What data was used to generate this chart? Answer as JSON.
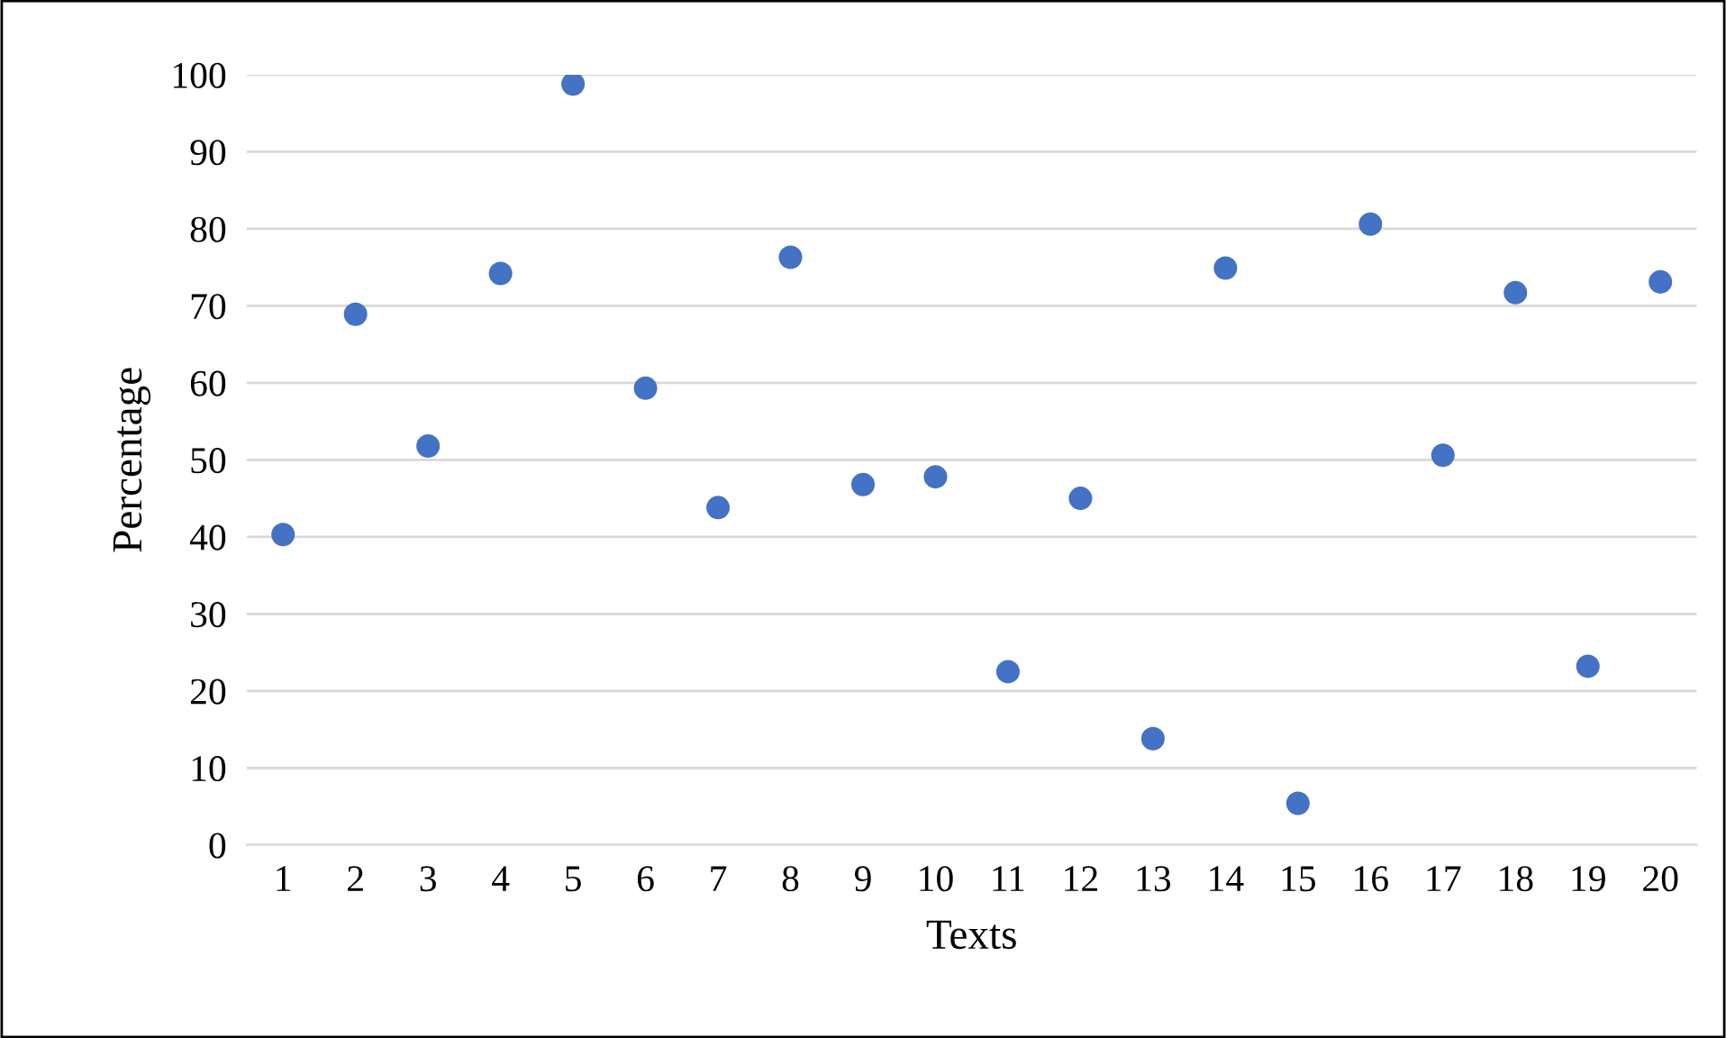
{
  "chart_data": {
    "type": "scatter",
    "xlabel": "Texts",
    "ylabel": "Percentage",
    "categories": [
      "1",
      "2",
      "3",
      "4",
      "5",
      "6",
      "7",
      "8",
      "9",
      "10",
      "11",
      "12",
      "13",
      "14",
      "15",
      "16",
      "17",
      "18",
      "19",
      "20"
    ],
    "series": [
      {
        "color": "#4472c4",
        "values": [
          40.3,
          68.9,
          51.8,
          74.2,
          98.8,
          59.3,
          43.8,
          76.3,
          46.8,
          47.8,
          22.5,
          45,
          13.8,
          74.9,
          5.4,
          80.6,
          50.6,
          71.7,
          23.2,
          73.1
        ]
      }
    ],
    "ylim": [
      0,
      100
    ],
    "yticks": [
      0,
      10,
      20,
      30,
      40,
      50,
      60,
      70,
      80,
      90,
      100
    ],
    "grid": "y",
    "marker": "circle",
    "legend": false
  }
}
